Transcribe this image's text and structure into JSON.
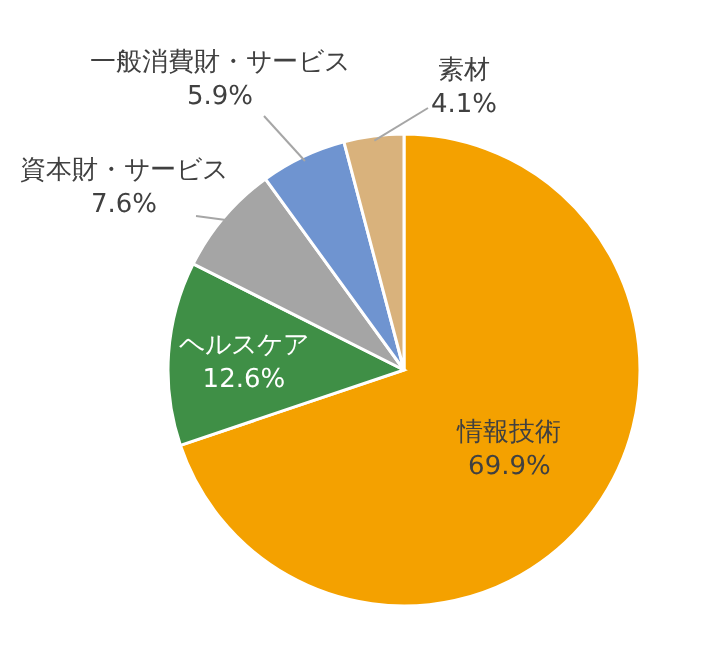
{
  "chart_data": {
    "type": "pie",
    "categories": [
      "情報技術",
      "ヘルスケア",
      "資本財・サービス",
      "一般消費財・サービス",
      "素材"
    ],
    "values": [
      69.9,
      12.6,
      7.6,
      5.9,
      4.1
    ],
    "colors": [
      "#f4a100",
      "#3f8f46",
      "#a5a5a5",
      "#6f94d0",
      "#d9b27c"
    ],
    "value_labels": [
      "69.9%",
      "12.6%",
      "7.6%",
      "5.9%",
      "4.1%"
    ]
  }
}
